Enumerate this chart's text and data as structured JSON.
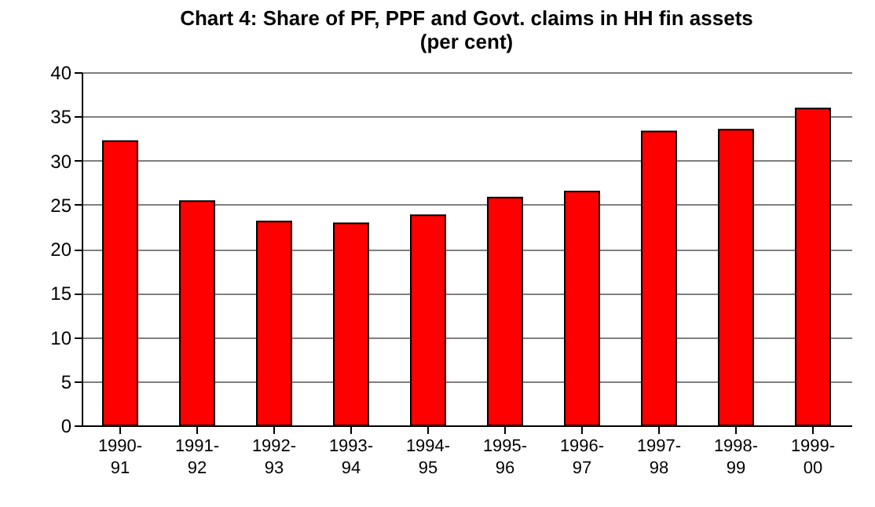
{
  "chart_data": {
    "type": "bar",
    "title": "Chart 4: Share of PF, PPF and Govt. claims in HH fin assets",
    "subtitle": "(per cent)",
    "categories": [
      "1990-91",
      "1991-92",
      "1992-93",
      "1993-94",
      "1994-95",
      "1995-96",
      "1996-97",
      "1997-98",
      "1998-99",
      "1999-00"
    ],
    "values": [
      32.2,
      25.4,
      23.1,
      22.9,
      23.8,
      25.8,
      26.5,
      33.3,
      33.5,
      35.9
    ],
    "color": "#ff0000",
    "ylim": [
      0,
      40
    ],
    "yticks": [
      0,
      5,
      10,
      15,
      20,
      25,
      30,
      35,
      40
    ],
    "grid": "y"
  }
}
